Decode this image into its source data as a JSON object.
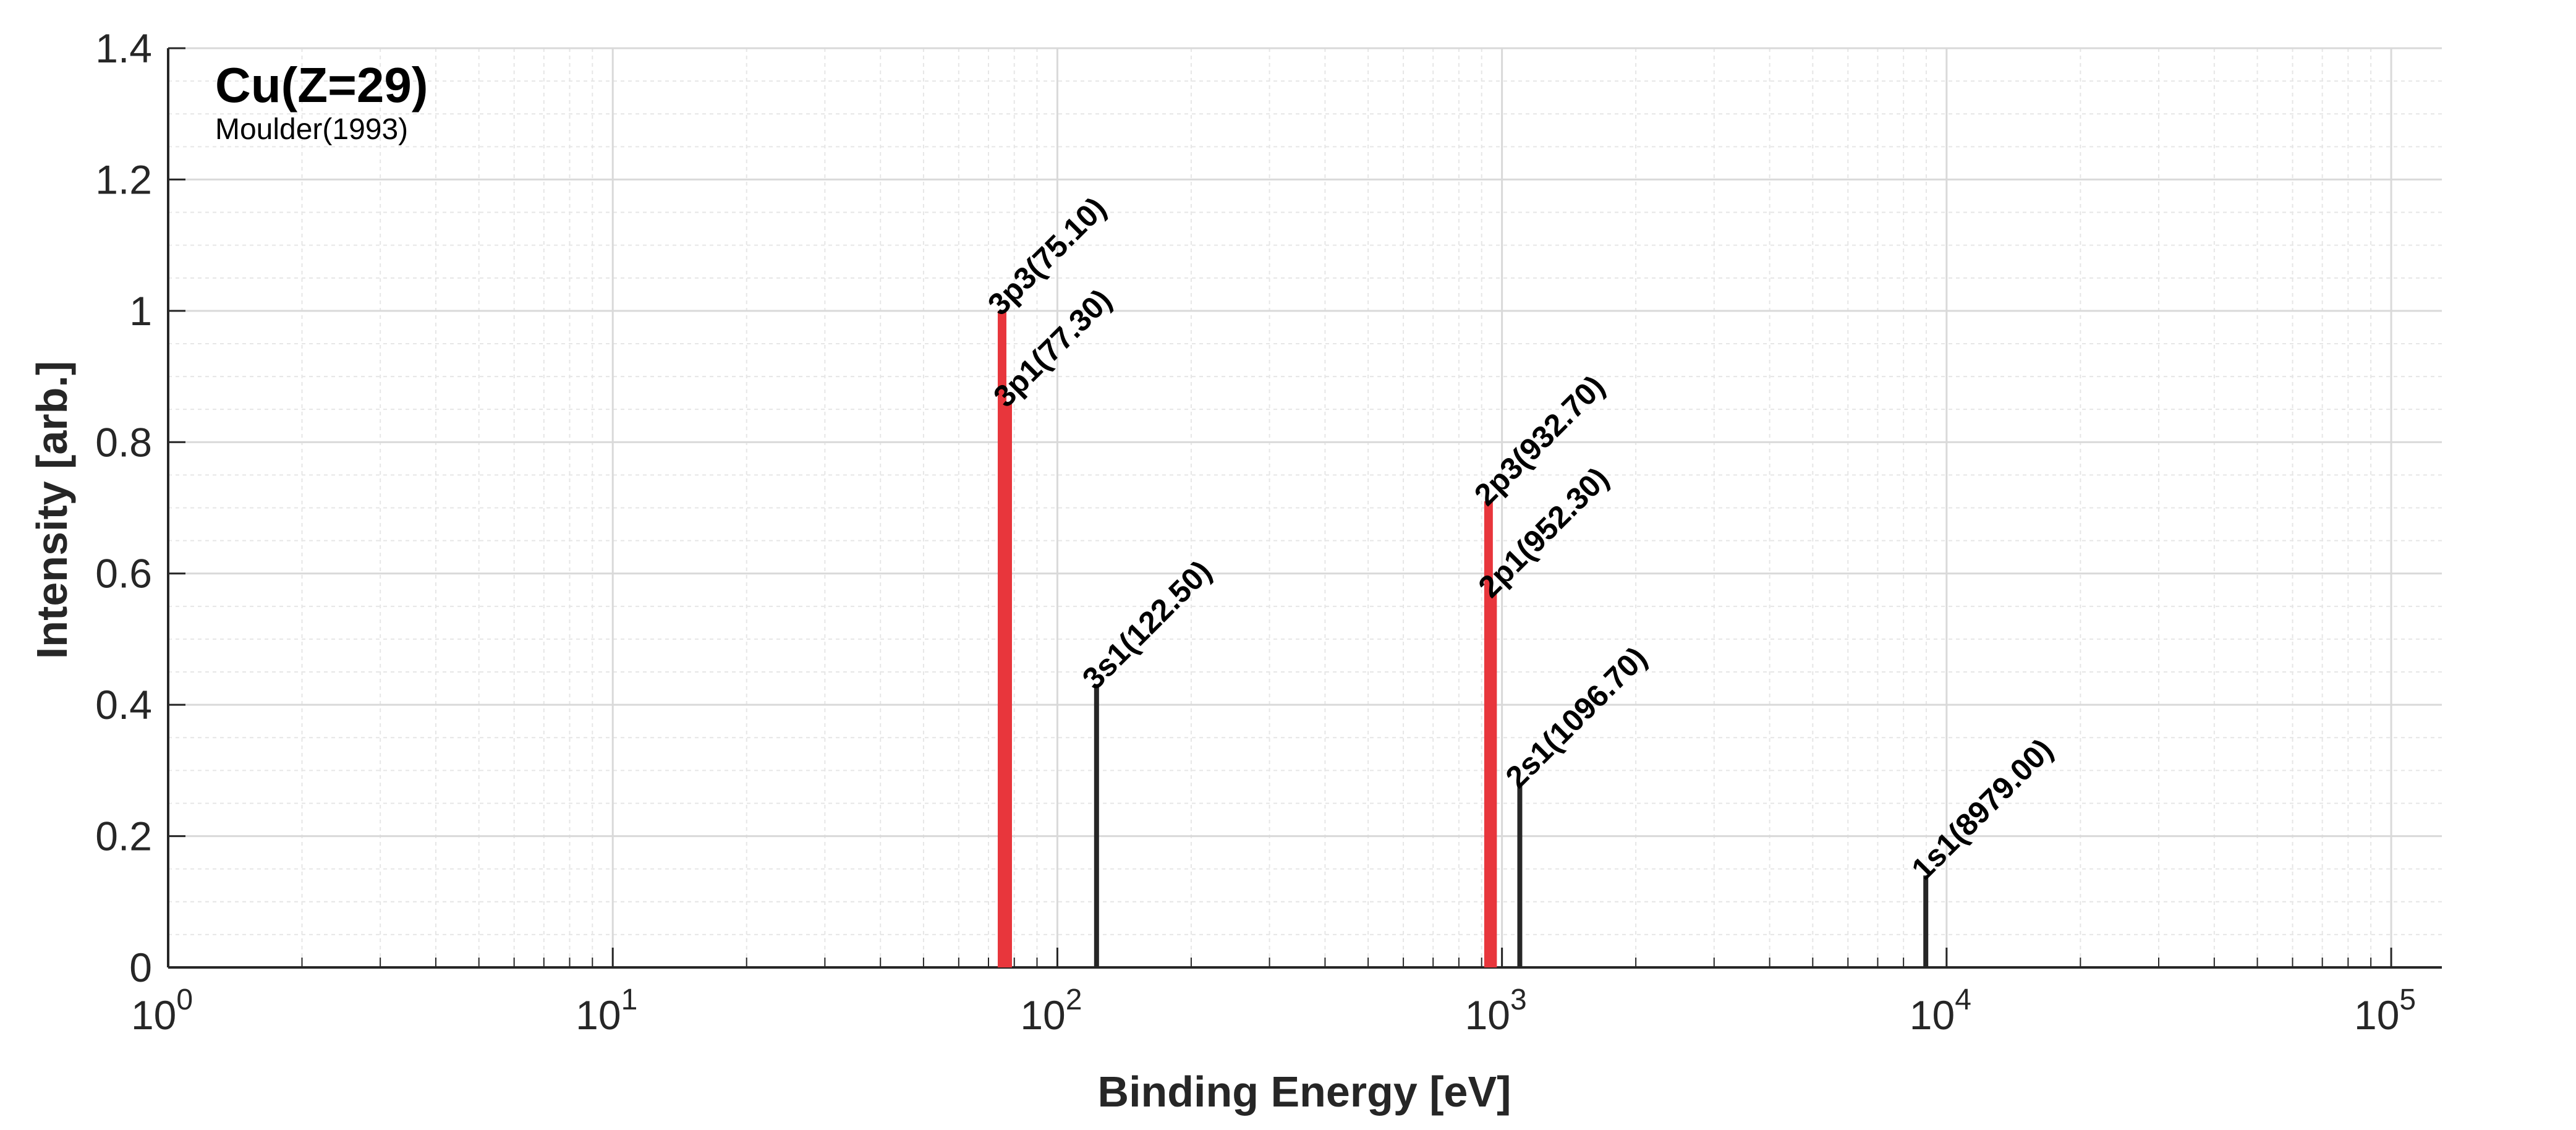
{
  "chart_data": {
    "type": "bar",
    "title": "Cu(Z=29)",
    "subtitle": "Moulder(1993)",
    "xlabel": "Binding Energy [eV]",
    "ylabel": "Intensity [arb.]",
    "xscale": "log",
    "xlim": [
      1,
      130000
    ],
    "ylim": [
      0,
      1.4
    ],
    "xticks": [
      {
        "value": 1,
        "base": "10",
        "exp": "0"
      },
      {
        "value": 10,
        "base": "10",
        "exp": "1"
      },
      {
        "value": 100,
        "base": "10",
        "exp": "2"
      },
      {
        "value": 1000,
        "base": "10",
        "exp": "3"
      },
      {
        "value": 10000,
        "base": "10",
        "exp": "4"
      },
      {
        "value": 100000,
        "base": "10",
        "exp": "5"
      }
    ],
    "yticks": [
      "0",
      "0.2",
      "0.4",
      "0.6",
      "0.8",
      "1",
      "1.2",
      "1.4"
    ],
    "grid": true,
    "minor_grid": true,
    "colors": {
      "highlight": "#e8363c",
      "default": "#262626",
      "grid": "#d9d9d9",
      "minor_grid": "#e6e6e6",
      "axis": "#262626"
    },
    "peaks": [
      {
        "label": "3p3(75.10)",
        "x": 75.1,
        "y": 1.0,
        "highlight": true
      },
      {
        "label": "3p1(77.30)",
        "x": 77.3,
        "y": 0.86,
        "highlight": true
      },
      {
        "label": "3s1(122.50)",
        "x": 122.5,
        "y": 0.43,
        "highlight": false
      },
      {
        "label": "2p3(932.70)",
        "x": 932.7,
        "y": 0.71,
        "highlight": true
      },
      {
        "label": "2p1(952.30)",
        "x": 952.3,
        "y": 0.57,
        "highlight": true
      },
      {
        "label": "2s1(1096.70)",
        "x": 1096.7,
        "y": 0.28,
        "highlight": false
      },
      {
        "label": "1s1(8979.00)",
        "x": 8979.0,
        "y": 0.14,
        "highlight": false
      }
    ]
  }
}
